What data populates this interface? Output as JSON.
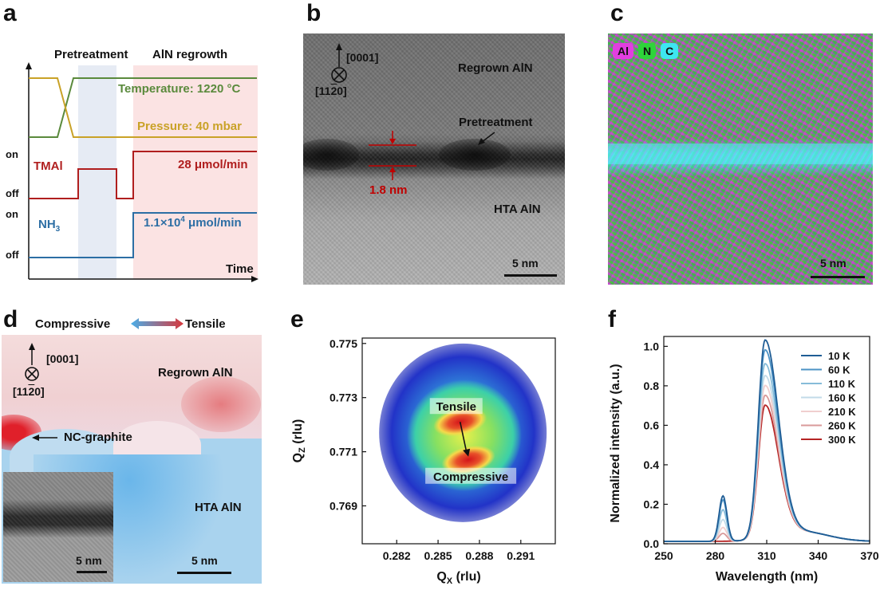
{
  "panels": {
    "a": {
      "letter": "a",
      "phase_pretreatment": "Pretreatment",
      "phase_regrowth": "AlN regrowth",
      "temperature_label": "Temperature: 1220 °C",
      "pressure_label": "Pressure: 40 mbar",
      "tmal_label": "TMAl",
      "tmal_rate": "28 μmol/min",
      "nh3_label": "NH",
      "nh3_sub": "3",
      "nh3_rate_prefix": "1.1×10",
      "nh3_rate_exp": "4",
      "nh3_rate_suffix": " μmol/min",
      "on_label": "on",
      "off_label": "off",
      "time_label": "Time",
      "colors": {
        "temperature": "#5a8a3c",
        "pressure": "#c9a227",
        "tmal": "#b01e1e",
        "nh3": "#2c6ea4",
        "pretreat_bg": "#e6ebf4",
        "regrowth_bg": "#fbe3e3"
      }
    },
    "b": {
      "letter": "b",
      "direction_up": "[0001]",
      "direction_in": "[11",
      "direction_in_bar": "2",
      "direction_in_end": "0]",
      "regrown": "Regrown AlN",
      "pretreatment": "Pretreatment",
      "thickness": "1.8 nm",
      "hta": "HTA AlN",
      "scale": "5 nm"
    },
    "c": {
      "letter": "c",
      "legend": [
        {
          "label": "Al",
          "color": "#e23ee0"
        },
        {
          "label": "N",
          "color": "#2ed43a"
        },
        {
          "label": "C",
          "color": "#3de6f0"
        }
      ],
      "scale": "5 nm"
    },
    "d": {
      "letter": "d",
      "compressive": "Compressive",
      "tensile": "Tensile",
      "direction_up": "[0001]",
      "direction_in": "[11",
      "direction_in_bar": "2",
      "direction_in_end": "0]",
      "regrown": "Regrown AlN",
      "nc_graphite": "NC-graphite",
      "hta": "HTA AlN",
      "inset_scale": "5 nm",
      "scale": "5 nm"
    },
    "e": {
      "letter": "e",
      "tensile": "Tensile",
      "compressive": "Compressive"
    },
    "f": {
      "letter": "f"
    }
  },
  "chart_data": [
    {
      "type": "heatmap",
      "panel": "e",
      "xlabel": "Q",
      "xlabel_sub": "X",
      "xlabel_unit": " (rlu)",
      "ylabel": "Q",
      "ylabel_sub": "Z",
      "ylabel_unit": " (rlu)",
      "xlim": [
        0.2795,
        0.2935
      ],
      "ylim": [
        0.7676,
        0.7752
      ],
      "xticks": [
        "0.282",
        "0.285",
        "0.288",
        "0.291"
      ],
      "xtick_values": [
        0.282,
        0.285,
        0.288,
        0.291
      ],
      "yticks": [
        "0.775",
        "0.773",
        "0.771",
        "0.769"
      ],
      "ytick_values": [
        0.775,
        0.773,
        0.771,
        0.769
      ],
      "peaks": [
        {
          "name": "Tensile",
          "qx": 0.2866,
          "qz": 0.7721
        },
        {
          "name": "Compressive",
          "qx": 0.2872,
          "qz": 0.7707
        }
      ]
    },
    {
      "type": "line",
      "panel": "f",
      "xlabel": "Wavelength (nm)",
      "ylabel": "Normalized intensity (a.u.)",
      "xlim": [
        250,
        370
      ],
      "ylim": [
        0,
        1.05
      ],
      "xticks": [
        "250",
        "280",
        "310",
        "340",
        "370"
      ],
      "xtick_values": [
        250,
        280,
        310,
        340,
        370
      ],
      "yticks": [
        "0.0",
        "0.2",
        "0.4",
        "0.6",
        "0.8",
        "1.0"
      ],
      "ytick_values": [
        0,
        0.2,
        0.4,
        0.6,
        0.8,
        1.0
      ],
      "series": [
        {
          "name": "10 K",
          "color": "#1f5d95",
          "peak": 1.0,
          "shoulder": 0.23
        },
        {
          "name": "60 K",
          "color": "#4d93c6",
          "peak": 0.95,
          "shoulder": 0.21
        },
        {
          "name": "110 K",
          "color": "#86bcd9",
          "peak": 0.88,
          "shoulder": 0.16
        },
        {
          "name": "160 K",
          "color": "#c2dbe8",
          "peak": 0.82,
          "shoulder": 0.11
        },
        {
          "name": "210 K",
          "color": "#f0cfcf",
          "peak": 0.77,
          "shoulder": 0.07
        },
        {
          "name": "260 K",
          "color": "#d99a9a",
          "peak": 0.72,
          "shoulder": 0.04
        },
        {
          "name": "300 K",
          "color": "#b52424",
          "peak": 0.67,
          "shoulder": 0.0
        }
      ]
    }
  ]
}
